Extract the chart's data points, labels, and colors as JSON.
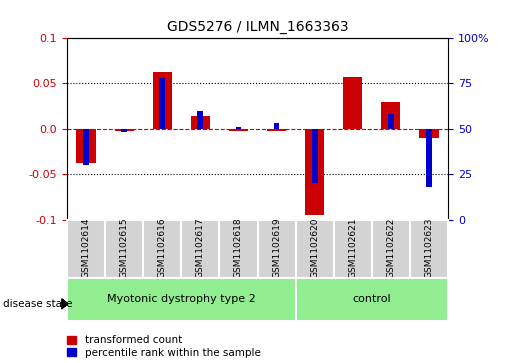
{
  "title": "GDS5276 / ILMN_1663363",
  "samples": [
    "GSM1102614",
    "GSM1102615",
    "GSM1102616",
    "GSM1102617",
    "GSM1102618",
    "GSM1102619",
    "GSM1102620",
    "GSM1102621",
    "GSM1102622",
    "GSM1102623"
  ],
  "red_values": [
    -0.038,
    -0.002,
    0.063,
    0.014,
    -0.002,
    -0.002,
    -0.095,
    0.057,
    0.03,
    -0.01
  ],
  "blue_percentile": [
    30,
    48,
    78,
    60,
    51,
    53,
    20,
    50,
    58,
    18
  ],
  "groups": [
    {
      "label": "Myotonic dystrophy type 2",
      "start": 0,
      "end": 6,
      "color": "#90ee90"
    },
    {
      "label": "control",
      "start": 6,
      "end": 10,
      "color": "#90ee90"
    }
  ],
  "ylim": [
    -0.1,
    0.1
  ],
  "y_left_ticks": [
    -0.1,
    -0.05,
    0.0,
    0.05,
    0.1
  ],
  "y_right_ticks": [
    0,
    25,
    50,
    75,
    100
  ],
  "red_color": "#cc0000",
  "blue_color": "#0000cc",
  "zero_line_color": "#cc0000",
  "tick_label_color_left": "#cc0000",
  "tick_label_color_right": "#0000cc",
  "bg_color": "#ffffff",
  "disease_state_label": "disease state",
  "legend_red": "transformed count",
  "legend_blue": "percentile rank within the sample",
  "red_bar_width": 0.5,
  "blue_bar_width": 0.15
}
